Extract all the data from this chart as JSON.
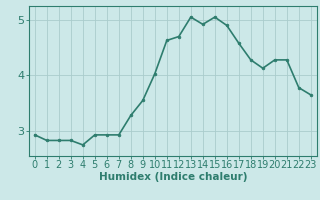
{
  "x": [
    0,
    1,
    2,
    3,
    4,
    5,
    6,
    7,
    8,
    9,
    10,
    11,
    12,
    13,
    14,
    15,
    16,
    17,
    18,
    19,
    20,
    21,
    22,
    23
  ],
  "y": [
    2.93,
    2.83,
    2.83,
    2.83,
    2.75,
    2.93,
    2.93,
    2.93,
    3.28,
    3.55,
    4.03,
    4.63,
    4.7,
    5.05,
    4.92,
    5.05,
    4.9,
    4.58,
    4.28,
    4.13,
    4.28,
    4.28,
    3.78,
    3.65
  ],
  "line_color": "#2e7d6e",
  "marker": "o",
  "marker_size": 2.0,
  "bg_color": "#cce8e8",
  "grid_color": "#aacccc",
  "xlabel": "Humidex (Indice chaleur)",
  "yticks": [
    3,
    4,
    5
  ],
  "ylim": [
    2.55,
    5.25
  ],
  "xlim": [
    -0.5,
    23.5
  ],
  "xlabel_fontsize": 7.5,
  "tick_fontsize": 7,
  "line_width": 1.2
}
